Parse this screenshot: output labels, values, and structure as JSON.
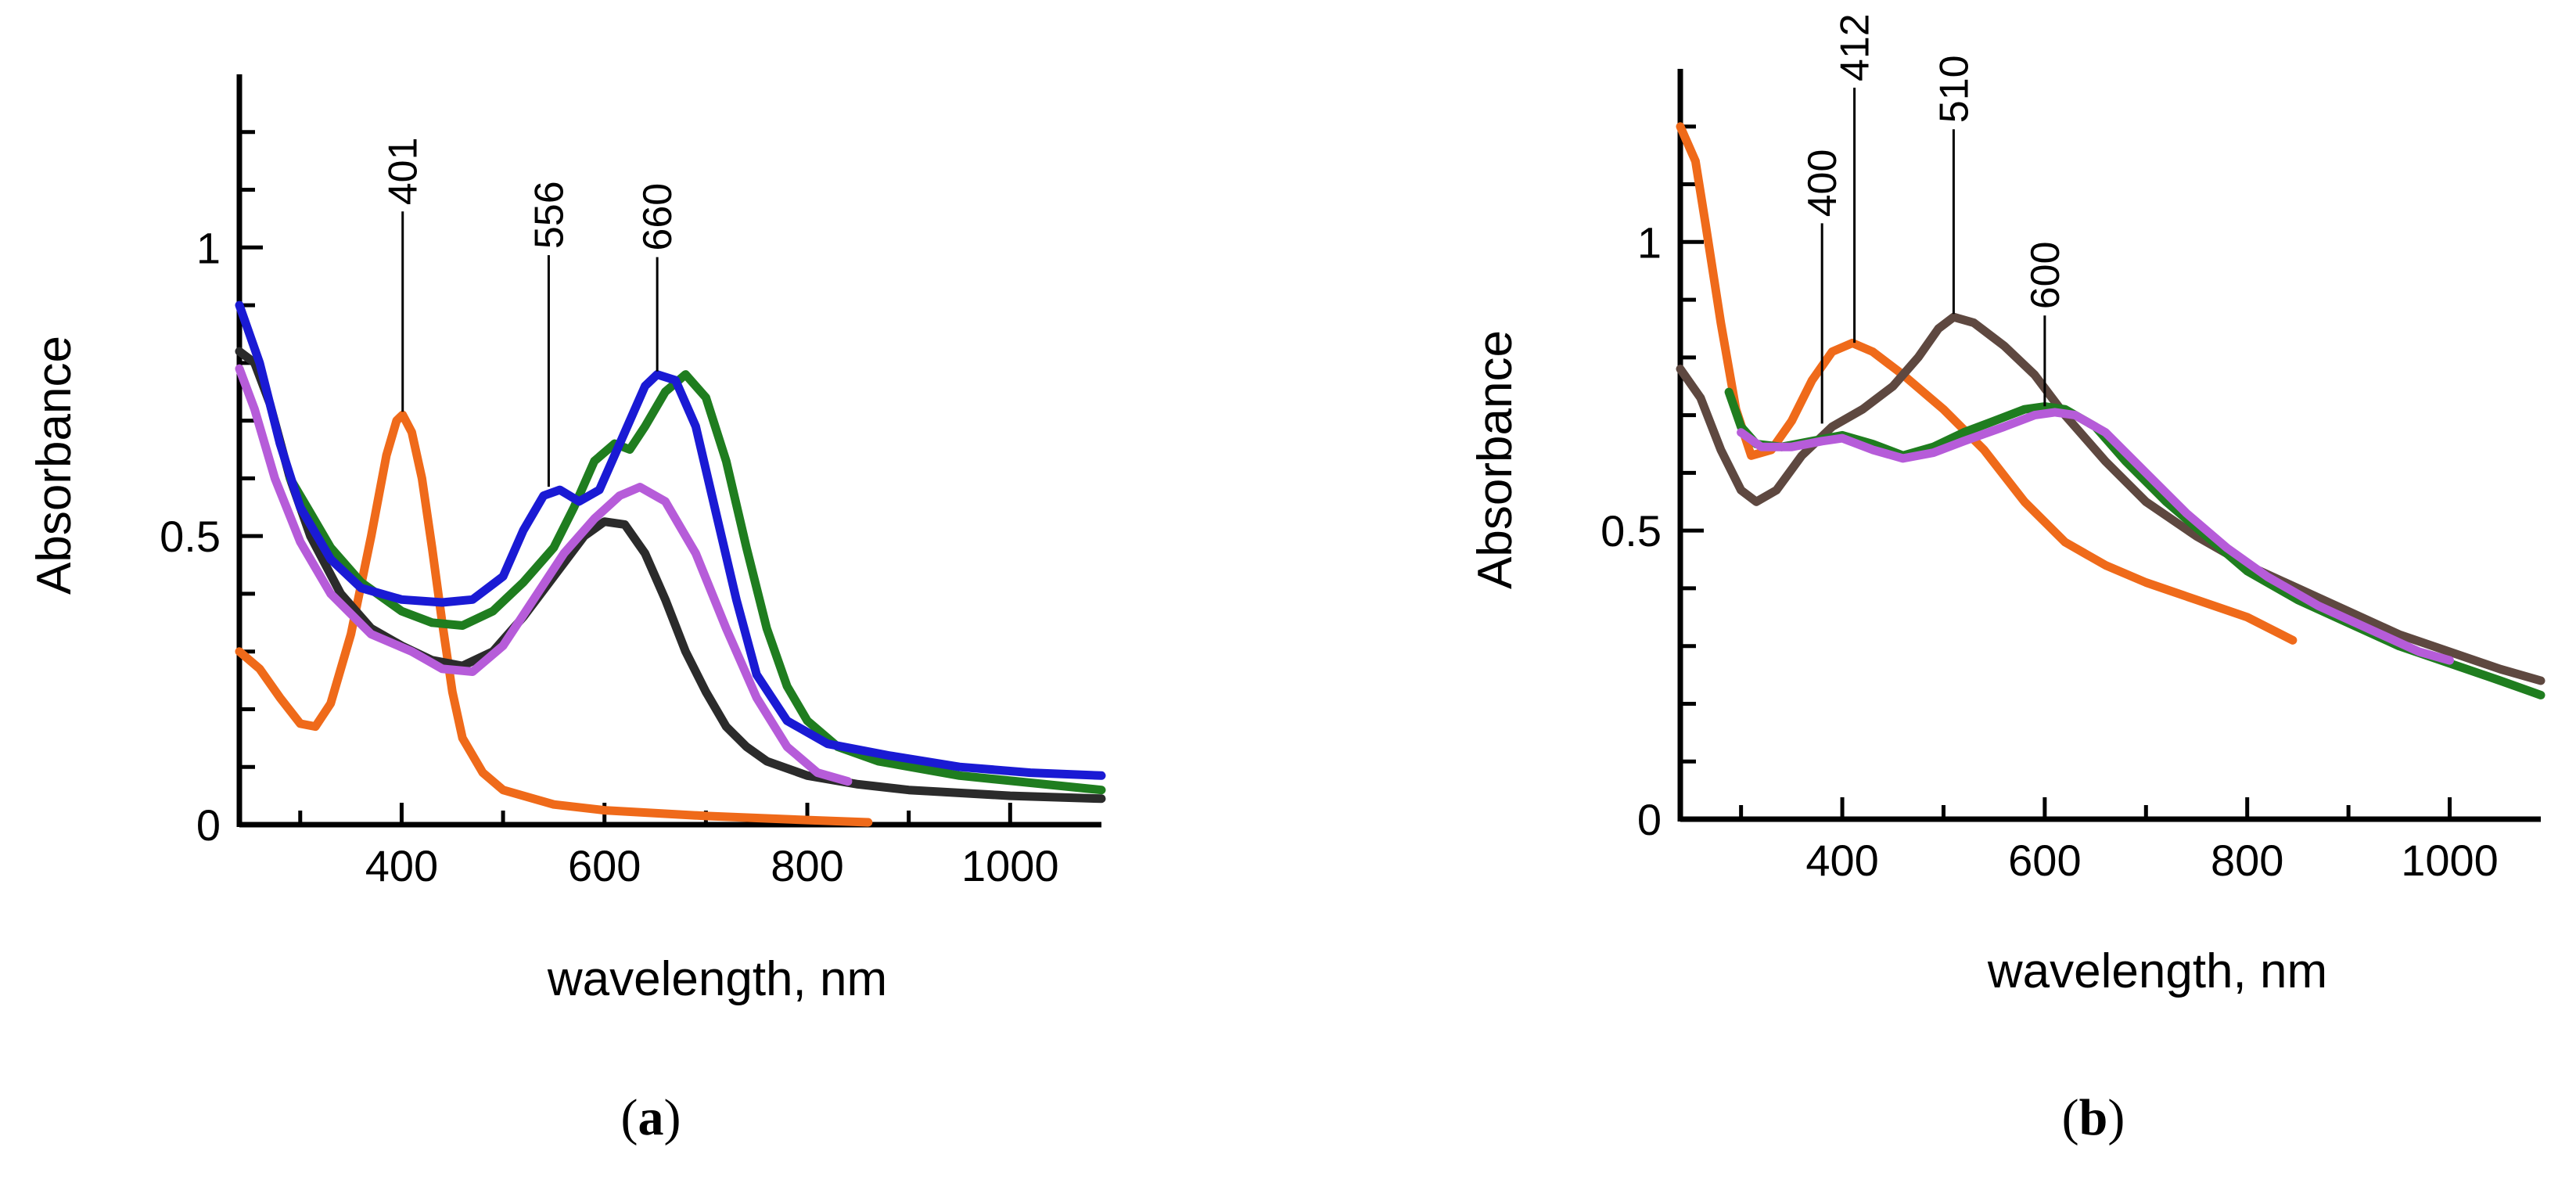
{
  "chart_data": [
    {
      "type": "line",
      "panel_label": "(a)",
      "panel_letter": "a",
      "title": "",
      "xlabel": "wavelength, nm",
      "ylabel": "Absorbance",
      "xlim": [
        240,
        1090
      ],
      "ylim": [
        0,
        1.3
      ],
      "xticks": [
        400,
        600,
        800,
        1000
      ],
      "yticks": [
        0,
        0.5,
        1
      ],
      "ytick_labels": [
        "0",
        "0.5",
        "1"
      ],
      "grid": false,
      "annotations": [
        {
          "label": "401",
          "x": 401,
          "y": 0.71
        },
        {
          "label": "556",
          "x": 545,
          "y": 0.58
        },
        {
          "label": "660",
          "x": 652,
          "y": 0.78
        }
      ],
      "series": [
        {
          "name": "orange",
          "color": "#ef6a1a",
          "points": [
            [
              240,
              0.3
            ],
            [
              260,
              0.27
            ],
            [
              280,
              0.22
            ],
            [
              300,
              0.175
            ],
            [
              315,
              0.17
            ],
            [
              330,
              0.21
            ],
            [
              350,
              0.33
            ],
            [
              370,
              0.5
            ],
            [
              385,
              0.64
            ],
            [
              395,
              0.7
            ],
            [
              401,
              0.71
            ],
            [
              410,
              0.68
            ],
            [
              420,
              0.6
            ],
            [
              430,
              0.48
            ],
            [
              440,
              0.35
            ],
            [
              450,
              0.23
            ],
            [
              460,
              0.15
            ],
            [
              480,
              0.09
            ],
            [
              500,
              0.06
            ],
            [
              550,
              0.035
            ],
            [
              600,
              0.025
            ],
            [
              700,
              0.015
            ],
            [
              800,
              0.008
            ],
            [
              860,
              0.004
            ]
          ]
        },
        {
          "name": "black",
          "color": "#2b2b2b",
          "points": [
            [
              240,
              0.82
            ],
            [
              255,
              0.8
            ],
            [
              270,
              0.73
            ],
            [
              290,
              0.6
            ],
            [
              310,
              0.5
            ],
            [
              340,
              0.4
            ],
            [
              370,
              0.34
            ],
            [
              400,
              0.31
            ],
            [
              430,
              0.285
            ],
            [
              460,
              0.275
            ],
            [
              490,
              0.3
            ],
            [
              520,
              0.36
            ],
            [
              550,
              0.43
            ],
            [
              580,
              0.5
            ],
            [
              600,
              0.525
            ],
            [
              620,
              0.52
            ],
            [
              640,
              0.47
            ],
            [
              660,
              0.39
            ],
            [
              680,
              0.3
            ],
            [
              700,
              0.23
            ],
            [
              720,
              0.17
            ],
            [
              740,
              0.135
            ],
            [
              760,
              0.11
            ],
            [
              800,
              0.085
            ],
            [
              850,
              0.07
            ],
            [
              900,
              0.06
            ],
            [
              1000,
              0.05
            ],
            [
              1090,
              0.045
            ]
          ]
        },
        {
          "name": "green",
          "color": "#1f7d1f",
          "points": [
            [
              290,
              0.6
            ],
            [
              310,
              0.54
            ],
            [
              330,
              0.48
            ],
            [
              360,
              0.42
            ],
            [
              400,
              0.37
            ],
            [
              430,
              0.35
            ],
            [
              460,
              0.345
            ],
            [
              490,
              0.37
            ],
            [
              520,
              0.42
            ],
            [
              550,
              0.48
            ],
            [
              570,
              0.55
            ],
            [
              590,
              0.63
            ],
            [
              610,
              0.66
            ],
            [
              625,
              0.65
            ],
            [
              640,
              0.69
            ],
            [
              660,
              0.75
            ],
            [
              680,
              0.78
            ],
            [
              700,
              0.74
            ],
            [
              720,
              0.63
            ],
            [
              740,
              0.48
            ],
            [
              760,
              0.34
            ],
            [
              780,
              0.24
            ],
            [
              800,
              0.18
            ],
            [
              830,
              0.135
            ],
            [
              870,
              0.11
            ],
            [
              950,
              0.085
            ],
            [
              1090,
              0.06
            ]
          ]
        },
        {
          "name": "blue",
          "color": "#1a1ad4",
          "points": [
            [
              240,
              0.9
            ],
            [
              260,
              0.8
            ],
            [
              280,
              0.66
            ],
            [
              300,
              0.55
            ],
            [
              330,
              0.46
            ],
            [
              360,
              0.41
            ],
            [
              400,
              0.39
            ],
            [
              440,
              0.385
            ],
            [
              470,
              0.39
            ],
            [
              500,
              0.43
            ],
            [
              520,
              0.51
            ],
            [
              540,
              0.57
            ],
            [
              556,
              0.58
            ],
            [
              575,
              0.56
            ],
            [
              595,
              0.58
            ],
            [
              620,
              0.68
            ],
            [
              640,
              0.76
            ],
            [
              652,
              0.78
            ],
            [
              670,
              0.77
            ],
            [
              690,
              0.69
            ],
            [
              710,
              0.54
            ],
            [
              730,
              0.39
            ],
            [
              750,
              0.26
            ],
            [
              780,
              0.18
            ],
            [
              820,
              0.14
            ],
            [
              880,
              0.12
            ],
            [
              950,
              0.1
            ],
            [
              1020,
              0.09
            ],
            [
              1090,
              0.085
            ]
          ]
        },
        {
          "name": "violet",
          "color": "#b65cd9",
          "points": [
            [
              240,
              0.79
            ],
            [
              255,
              0.72
            ],
            [
              275,
              0.6
            ],
            [
              300,
              0.49
            ],
            [
              330,
              0.4
            ],
            [
              370,
              0.33
            ],
            [
              410,
              0.3
            ],
            [
              440,
              0.27
            ],
            [
              470,
              0.265
            ],
            [
              500,
              0.31
            ],
            [
              530,
              0.39
            ],
            [
              560,
              0.47
            ],
            [
              590,
              0.53
            ],
            [
              615,
              0.57
            ],
            [
              635,
              0.585
            ],
            [
              660,
              0.56
            ],
            [
              690,
              0.47
            ],
            [
              720,
              0.34
            ],
            [
              750,
              0.22
            ],
            [
              780,
              0.135
            ],
            [
              810,
              0.09
            ],
            [
              840,
              0.075
            ]
          ]
        }
      ]
    },
    {
      "type": "line",
      "panel_label": "(b)",
      "panel_letter": "b",
      "title": "",
      "xlabel": "wavelength, nm",
      "ylabel": "Absorbance",
      "xlim": [
        240,
        1090
      ],
      "ylim": [
        0,
        1.3
      ],
      "xticks": [
        400,
        600,
        800,
        1000
      ],
      "yticks": [
        0,
        0.5,
        1
      ],
      "ytick_labels": [
        "0",
        "0.5",
        "1"
      ],
      "grid": false,
      "annotations": [
        {
          "label": "400",
          "x": 380,
          "y": 0.68
        },
        {
          "label": "412",
          "x": 412,
          "y": 0.82
        },
        {
          "label": "510",
          "x": 510,
          "y": 0.87
        },
        {
          "label": "600",
          "x": 600,
          "y": 0.71
        }
      ],
      "series": [
        {
          "name": "orange",
          "color": "#ef6a1a",
          "points": [
            [
              240,
              1.2
            ],
            [
              255,
              1.14
            ],
            [
              265,
              1.03
            ],
            [
              280,
              0.86
            ],
            [
              295,
              0.71
            ],
            [
              310,
              0.63
            ],
            [
              330,
              0.64
            ],
            [
              350,
              0.69
            ],
            [
              370,
              0.76
            ],
            [
              390,
              0.81
            ],
            [
              410,
              0.825
            ],
            [
              430,
              0.81
            ],
            [
              460,
              0.77
            ],
            [
              500,
              0.71
            ],
            [
              540,
              0.64
            ],
            [
              580,
              0.55
            ],
            [
              620,
              0.48
            ],
            [
              660,
              0.44
            ],
            [
              700,
              0.41
            ],
            [
              750,
              0.38
            ],
            [
              800,
              0.35
            ],
            [
              845,
              0.31
            ]
          ]
        },
        {
          "name": "brown",
          "color": "#5e4840",
          "points": [
            [
              240,
              0.78
            ],
            [
              260,
              0.73
            ],
            [
              280,
              0.64
            ],
            [
              300,
              0.57
            ],
            [
              315,
              0.55
            ],
            [
              335,
              0.57
            ],
            [
              360,
              0.63
            ],
            [
              390,
              0.68
            ],
            [
              420,
              0.71
            ],
            [
              450,
              0.75
            ],
            [
              475,
              0.8
            ],
            [
              495,
              0.85
            ],
            [
              510,
              0.87
            ],
            [
              530,
              0.86
            ],
            [
              560,
              0.82
            ],
            [
              590,
              0.77
            ],
            [
              620,
              0.7
            ],
            [
              660,
              0.62
            ],
            [
              700,
              0.55
            ],
            [
              750,
              0.49
            ],
            [
              800,
              0.44
            ],
            [
              850,
              0.4
            ],
            [
              900,
              0.36
            ],
            [
              950,
              0.32
            ],
            [
              1000,
              0.29
            ],
            [
              1050,
              0.26
            ],
            [
              1090,
              0.24
            ]
          ]
        },
        {
          "name": "green",
          "color": "#1f7d1f",
          "points": [
            [
              288,
              0.74
            ],
            [
              300,
              0.68
            ],
            [
              315,
              0.65
            ],
            [
              340,
              0.645
            ],
            [
              370,
              0.655
            ],
            [
              400,
              0.665
            ],
            [
              430,
              0.65
            ],
            [
              460,
              0.63
            ],
            [
              490,
              0.645
            ],
            [
              520,
              0.67
            ],
            [
              550,
              0.69
            ],
            [
              580,
              0.71
            ],
            [
              600,
              0.715
            ],
            [
              620,
              0.71
            ],
            [
              650,
              0.68
            ],
            [
              680,
              0.62
            ],
            [
              720,
              0.55
            ],
            [
              760,
              0.49
            ],
            [
              800,
              0.43
            ],
            [
              850,
              0.38
            ],
            [
              900,
              0.34
            ],
            [
              950,
              0.3
            ],
            [
              1000,
              0.27
            ],
            [
              1050,
              0.24
            ],
            [
              1090,
              0.215
            ]
          ]
        },
        {
          "name": "violet",
          "color": "#b65cd9",
          "points": [
            [
              300,
              0.67
            ],
            [
              320,
              0.645
            ],
            [
              350,
              0.645
            ],
            [
              380,
              0.655
            ],
            [
              400,
              0.66
            ],
            [
              430,
              0.64
            ],
            [
              460,
              0.625
            ],
            [
              490,
              0.635
            ],
            [
              520,
              0.655
            ],
            [
              560,
              0.68
            ],
            [
              590,
              0.7
            ],
            [
              610,
              0.705
            ],
            [
              630,
              0.7
            ],
            [
              660,
              0.67
            ],
            [
              700,
              0.6
            ],
            [
              740,
              0.53
            ],
            [
              780,
              0.47
            ],
            [
              820,
              0.42
            ],
            [
              870,
              0.37
            ],
            [
              920,
              0.33
            ],
            [
              970,
              0.29
            ],
            [
              1000,
              0.275
            ]
          ]
        }
      ]
    }
  ]
}
